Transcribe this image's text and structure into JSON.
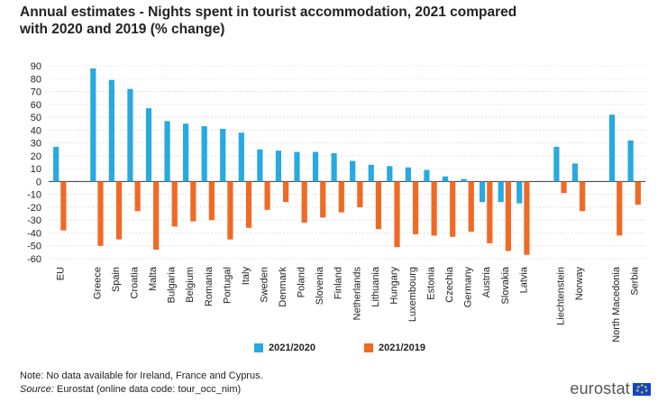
{
  "header": {
    "title_line1": "Annual estimates - Nights spent in tourist accommodation, 2021 compared",
    "title_line2": "with 2020 and 2019 (% change)"
  },
  "chart_data": {
    "type": "bar",
    "title": "Annual estimates - Nights spent in tourist accommodation, 2021 compared with 2020 and 2019 (% change)",
    "xlabel": "",
    "ylabel": "",
    "ylim": [
      -60,
      90
    ],
    "yticks": [
      90,
      80,
      70,
      60,
      50,
      40,
      30,
      20,
      10,
      0,
      -10,
      -20,
      -30,
      -40,
      -50,
      -60
    ],
    "grid": true,
    "legend_position": "bottom",
    "categories": [
      "EU",
      "Greece",
      "Spain",
      "Croatia",
      "Malta",
      "Bulgaria",
      "Belgium",
      "Romania",
      "Portugal",
      "Italy",
      "Sweden",
      "Denmark",
      "Poland",
      "Slovenia",
      "Finland",
      "Netherlands",
      "Lithuania",
      "Hungary",
      "Luxembourg",
      "Estonia",
      "Czechia",
      "Germany",
      "Austria",
      "Slovakia",
      "Latvia",
      "Liechtenstein",
      "Norway",
      "North Macedonia",
      "Serbia"
    ],
    "series": [
      {
        "name": "2021/2020",
        "color": "#27a9e1",
        "values": [
          27,
          88,
          79,
          72,
          57,
          47,
          45,
          43,
          41,
          38,
          25,
          24,
          23,
          23,
          22,
          16,
          13,
          12,
          11,
          9,
          4,
          2,
          -16,
          -16,
          -17,
          27,
          14,
          52,
          32
        ]
      },
      {
        "name": "2021/2019",
        "color": "#f06a25",
        "values": [
          -38,
          -50,
          -45,
          -23,
          -53,
          -35,
          -31,
          -30,
          -45,
          -36,
          -22,
          -16,
          -32,
          -28,
          -24,
          -20,
          -37,
          -51,
          -41,
          -42,
          -43,
          -39,
          -48,
          -54,
          -57,
          -9,
          -23,
          -42,
          -18
        ]
      }
    ]
  },
  "legend": {
    "item1": "2021/2020",
    "item2": "2021/2019"
  },
  "footer": {
    "note": "Note: No data available for Ireland, France and Cyprus.",
    "source_label": "Source:",
    "source_text": " Eurostat (online data code: tour_occ_nim)"
  },
  "brand": {
    "logo_text": "eurostat"
  }
}
